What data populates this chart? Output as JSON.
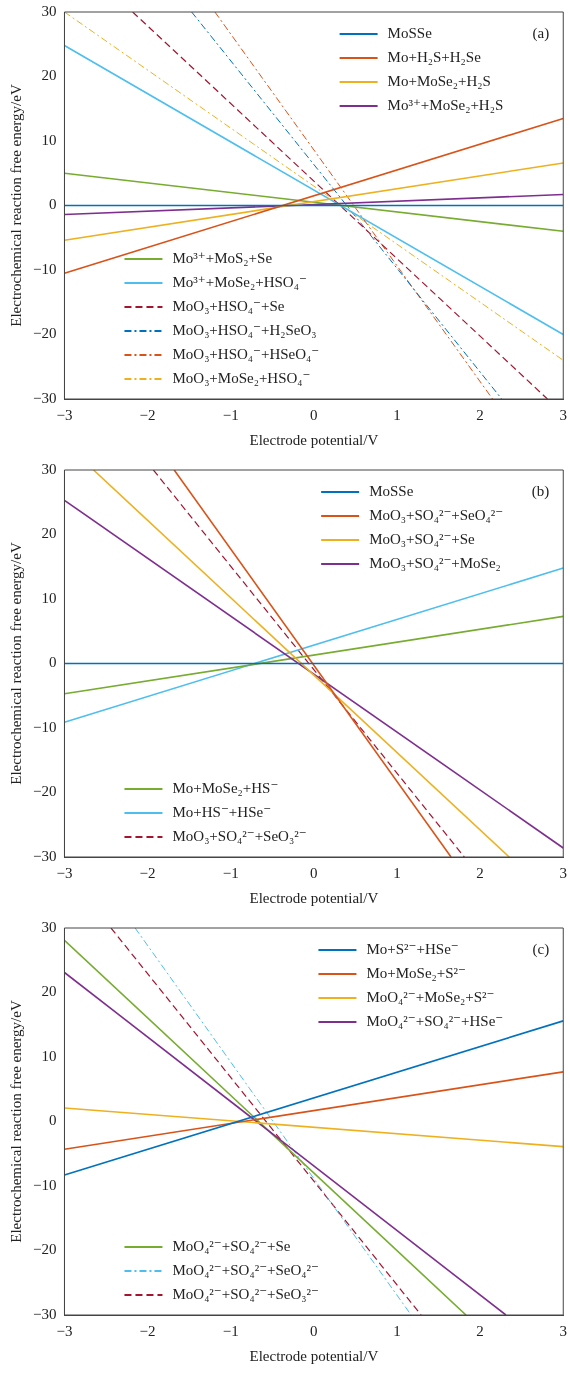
{
  "chart_data": [
    {
      "type": "line",
      "xlabel": "Electrode potential/V",
      "ylabel": "Electrochemical reaction free energy/eV",
      "xlim": [
        -3,
        3
      ],
      "ylim": [
        -30,
        30
      ],
      "xticks": [
        -3,
        -2,
        -1,
        0,
        1,
        2,
        3
      ],
      "yticks": [
        -30,
        -20,
        -10,
        0,
        10,
        20,
        30
      ],
      "legend": "center",
      "marker": "none",
      "annotations": [
        "(a)"
      ],
      "series": [
        {
          "name": "MoSSe",
          "color": "#0072bd",
          "line_style": "solid",
          "x": [
            -3,
            3
          ],
          "values": [
            0,
            0
          ]
        },
        {
          "name": "Mo+H₂S+H₂Se",
          "color": "#d95319",
          "line_style": "solid",
          "x": [
            -3,
            3
          ],
          "values": [
            -10.5,
            13.5
          ]
        },
        {
          "name": "Mo+MoSe₂+H₂S",
          "color": "#edb120",
          "line_style": "solid",
          "x": [
            -3,
            3
          ],
          "values": [
            -5.4,
            6.6
          ]
        },
        {
          "name": "Mo³⁺+MoSe₂+H₂S",
          "color": "#7e2f8e",
          "line_style": "solid",
          "x": [
            -3,
            3
          ],
          "values": [
            -1.4,
            1.7
          ]
        },
        {
          "name": "Mo³⁺+MoS₂+Se",
          "color": "#77ac30",
          "line_style": "solid",
          "x": [
            -3,
            3
          ],
          "values": [
            5,
            -4
          ]
        },
        {
          "name": "Mo³⁺+MoSe₂+HSO₄⁻",
          "color": "#4dbeee",
          "line_style": "solid",
          "x": [
            -3,
            3
          ],
          "values": [
            24.8,
            -20
          ]
        },
        {
          "name": "MoO₃+HSO₄⁻+Se",
          "color": "#a2142f",
          "line_style": "dashed",
          "x": [
            -2.18,
            2.81
          ],
          "values": [
            30,
            -30
          ]
        },
        {
          "name": "MoO₃+HSO₄⁻+H₂SeO₃",
          "color": "#0072bd",
          "line_style": "dashdot",
          "x": [
            -1.47,
            2.26
          ],
          "values": [
            30,
            -30
          ]
        },
        {
          "name": "MoO₃+HSO₄⁻+HSeO₄⁻",
          "color": "#d95319",
          "line_style": "dashdot",
          "x": [
            -1.19,
            2.15
          ],
          "values": [
            30,
            -30
          ]
        },
        {
          "name": "MoO₃+MoSe₂+HSO₄⁻",
          "color": "#edb120",
          "line_style": "dashdot",
          "x": [
            -3,
            3
          ],
          "values": [
            30,
            -24
          ]
        }
      ]
    },
    {
      "type": "line",
      "xlabel": "Electrode potential/V",
      "ylabel": "Electrochemical reaction free energy/eV",
      "xlim": [
        -3,
        3
      ],
      "ylim": [
        -30,
        30
      ],
      "xticks": [
        -3,
        -2,
        -1,
        0,
        1,
        2,
        3
      ],
      "yticks": [
        -30,
        -20,
        -10,
        0,
        10,
        20,
        30
      ],
      "legend": "center",
      "marker": "none",
      "annotations": [
        "(b)"
      ],
      "series": [
        {
          "name": "MoSSe",
          "color": "#0072bd",
          "line_style": "solid",
          "x": [
            -3,
            3
          ],
          "values": [
            0,
            0
          ]
        },
        {
          "name": "MoO₃+SO₄²⁻+SeO₄²⁻",
          "color": "#d95319",
          "line_style": "solid",
          "x": [
            -1.68,
            1.65
          ],
          "values": [
            30,
            -30
          ]
        },
        {
          "name": "MoO₃+SO₄²⁻+Se",
          "color": "#edb120",
          "line_style": "solid",
          "x": [
            -2.65,
            2.35
          ],
          "values": [
            30,
            -30
          ]
        },
        {
          "name": "MoO₃+SO₄²⁻+MoSe₂",
          "color": "#7e2f8e",
          "line_style": "solid",
          "x": [
            -3,
            3
          ],
          "values": [
            25.3,
            -28.6
          ]
        },
        {
          "name": "Mo+MoSe₂+HS⁻",
          "color": "#77ac30",
          "line_style": "solid",
          "x": [
            -3,
            3
          ],
          "values": [
            -4.7,
            7.3
          ]
        },
        {
          "name": "Mo+HS⁻+HSe⁻",
          "color": "#4dbeee",
          "line_style": "solid",
          "x": [
            -3,
            3
          ],
          "values": [
            -9.1,
            14.8
          ]
        },
        {
          "name": "MoO₃+SO₄²⁻+SeO₃²⁻",
          "color": "#a2142f",
          "line_style": "dashed",
          "x": [
            -1.93,
            1.81
          ],
          "values": [
            30,
            -30
          ]
        }
      ]
    },
    {
      "type": "line",
      "xlabel": "Electrode potential/V",
      "ylabel": "Electrochemical reaction free energy/eV",
      "xlim": [
        -3,
        3
      ],
      "ylim": [
        -30,
        30
      ],
      "xticks": [
        -3,
        -2,
        -1,
        0,
        1,
        2,
        3
      ],
      "yticks": [
        -30,
        -20,
        -10,
        0,
        10,
        20,
        30
      ],
      "legend": "center",
      "marker": "none",
      "annotations": [
        "(c)"
      ],
      "series": [
        {
          "name": "Mo+S²⁻+HSe⁻",
          "color": "#0072bd",
          "line_style": "solid",
          "x": [
            -3,
            3
          ],
          "values": [
            -8.3,
            15.6
          ]
        },
        {
          "name": "Mo+MoSe₂+S²⁻",
          "color": "#d95319",
          "line_style": "solid",
          "x": [
            -3,
            3
          ],
          "values": [
            -4.3,
            7.7
          ]
        },
        {
          "name": "MoO₄²⁻+MoSe₂+S²⁻",
          "color": "#edb120",
          "line_style": "solid",
          "x": [
            -3,
            3
          ],
          "values": [
            2.1,
            -3.9
          ]
        },
        {
          "name": "MoO₄²⁻+SO₄²⁻+HSe⁻",
          "color": "#7e2f8e",
          "line_style": "solid",
          "x": [
            -3,
            2.31
          ],
          "values": [
            23.1,
            -30
          ]
        },
        {
          "name": "MoO₄²⁻+SO₄²⁻+Se",
          "color": "#77ac30",
          "line_style": "solid",
          "x": [
            -3,
            1.83
          ],
          "values": [
            28.1,
            -30
          ]
        },
        {
          "name": "MoO₄²⁻+SO₄²⁻+SeO₄²⁻",
          "color": "#4dbeee",
          "line_style": "dashdot",
          "x": [
            -2.15,
            1.17
          ],
          "values": [
            30,
            -30
          ]
        },
        {
          "name": "MoO₄²⁻+SO₄²⁻+SeO₃²⁻",
          "color": "#a2142f",
          "line_style": "dashed",
          "x": [
            -2.44,
            1.29
          ],
          "values": [
            30,
            -30
          ]
        }
      ]
    }
  ]
}
